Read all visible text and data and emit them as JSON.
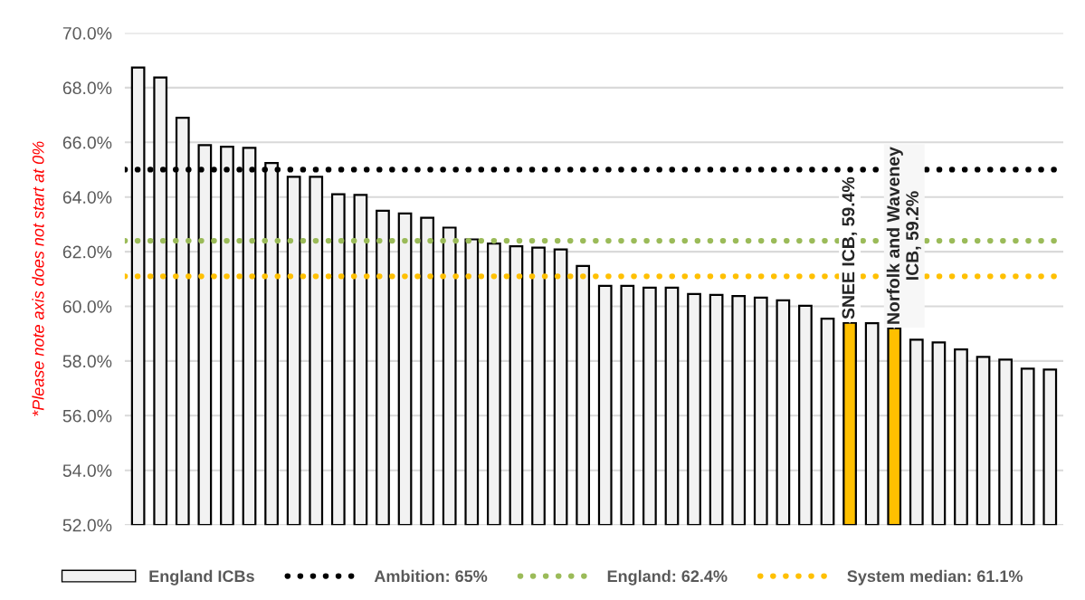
{
  "chart_data": {
    "type": "bar",
    "categories": [
      null,
      null,
      null,
      null,
      null,
      null,
      null,
      null,
      null,
      null,
      null,
      null,
      null,
      null,
      null,
      null,
      null,
      null,
      null,
      null,
      null,
      null,
      null,
      null,
      null,
      null,
      null,
      null,
      null,
      null,
      null,
      null,
      null,
      null,
      null,
      null,
      null,
      null,
      null,
      null,
      null,
      null
    ],
    "series": [
      {
        "name": "England ICBs",
        "color": "#f2f2f2",
        "colors": [
          "#f2f2f2",
          "#f2f2f2",
          "#f2f2f2",
          "#f2f2f2",
          "#f2f2f2",
          "#f2f2f2",
          "#f2f2f2",
          "#f2f2f2",
          "#f2f2f2",
          "#f2f2f2",
          "#f2f2f2",
          "#f2f2f2",
          "#f2f2f2",
          "#f2f2f2",
          "#f2f2f2",
          "#f2f2f2",
          "#f2f2f2",
          "#f2f2f2",
          "#f2f2f2",
          "#f2f2f2",
          "#f2f2f2",
          "#f2f2f2",
          "#f2f2f2",
          "#f2f2f2",
          "#f2f2f2",
          "#f2f2f2",
          "#f2f2f2",
          "#f2f2f2",
          "#f2f2f2",
          "#f2f2f2",
          "#f2f2f2",
          "#f2f2f2",
          "#ffc000",
          "#f2f2f2",
          "#ffc000",
          "#f2f2f2",
          "#f2f2f2",
          "#f2f2f2",
          "#f2f2f2",
          "#f2f2f2",
          "#f2f2f2",
          "#f2f2f2"
        ],
        "values": [
          68.74,
          68.37,
          66.9,
          65.9,
          65.84,
          65.8,
          65.24,
          64.74,
          64.74,
          64.1,
          64.08,
          63.5,
          63.4,
          63.24,
          62.88,
          62.45,
          62.3,
          62.2,
          62.15,
          62.08,
          61.48,
          60.75,
          60.75,
          60.68,
          60.68,
          60.45,
          60.42,
          60.38,
          60.32,
          60.22,
          60.02,
          59.55,
          59.4,
          59.38,
          59.2,
          58.78,
          58.68,
          58.42,
          58.15,
          58.05,
          57.72,
          57.69
        ]
      }
    ],
    "ylim": [
      52,
      70
    ],
    "yticks": [
      {
        "value": 52,
        "label": "52.0%"
      },
      {
        "value": 54,
        "label": "54.0%"
      },
      {
        "value": 56,
        "label": "56.0%"
      },
      {
        "value": 58,
        "label": "58.0%"
      },
      {
        "value": 60,
        "label": "60.0%"
      },
      {
        "value": 62,
        "label": "62.0%"
      },
      {
        "value": 64,
        "label": "64.0%"
      },
      {
        "value": 66,
        "label": "66.0%"
      },
      {
        "value": 68,
        "label": "68.0%"
      },
      {
        "value": 70,
        "label": "70.0%"
      }
    ],
    "grid": "y",
    "legend": "bottom",
    "ref_lines": [
      {
        "axis": "y",
        "value": 65,
        "label": "Ambition: 65%",
        "color": "#000000",
        "line_style": "dotted"
      },
      {
        "axis": "y",
        "value": 62.4,
        "label": "England: 62.4%",
        "color": "#9bbb59",
        "line_style": "dotted"
      },
      {
        "axis": "y",
        "value": 61.1,
        "label": "System median: 61.1%",
        "color": "#ffc000",
        "line_style": "dotted"
      }
    ],
    "ylabel": "*Please note axis does not start at 0%",
    "annotations": [
      {
        "text": "SNEE ICB, 59.4%",
        "y": 59.4
      },
      {
        "text": "Norfolk and Waveney\nICB, 59.2%",
        "y": 59.2
      }
    ]
  }
}
